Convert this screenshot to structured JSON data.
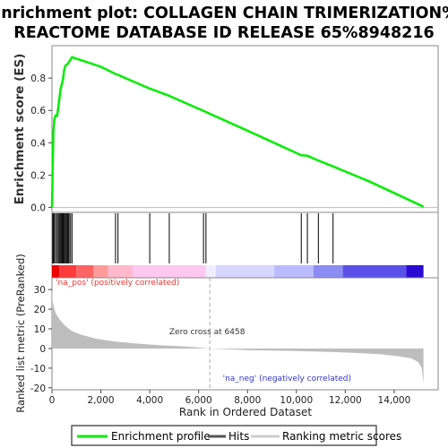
{
  "chart_data": {
    "type": "line",
    "title_lines": [
      "Enrichment plot: COLLAGEN CHAIN TRIMERIZATION%",
      "REACTOME DATABASE ID RELEASE 65%8948216"
    ],
    "xlabel": "Rank in Ordered Dataset",
    "xlim": [
      0,
      15800
    ],
    "x_ticks": [
      0,
      2000,
      4000,
      6000,
      8000,
      10000,
      12000,
      14000
    ],
    "x_tick_labels": [
      "0",
      "2,000",
      "4,000",
      "6,000",
      "8,000",
      "10,000",
      "12,000",
      "14,000"
    ],
    "es_panel": {
      "ylabel": "Enrichment score (ES)",
      "ylim": [
        -0.03,
        1.0
      ],
      "y_ticks": [
        0.0,
        0.2,
        0.4,
        0.6,
        0.8
      ],
      "y_tick_labels": [
        "0.0",
        "0.2",
        "0.4",
        "0.6",
        "0.8"
      ],
      "series": [
        {
          "name": "Enrichment profile",
          "color": "#00ee00",
          "points": [
            [
              0,
              0.0
            ],
            [
              30,
              0.25
            ],
            [
              60,
              0.47
            ],
            [
              100,
              0.55
            ],
            [
              150,
              0.57
            ],
            [
              210,
              0.565
            ],
            [
              260,
              0.62
            ],
            [
              310,
              0.68
            ],
            [
              350,
              0.73
            ],
            [
              400,
              0.76
            ],
            [
              450,
              0.79
            ],
            [
              490,
              0.84
            ],
            [
              530,
              0.87
            ],
            [
              570,
              0.88
            ],
            [
              620,
              0.885
            ],
            [
              660,
              0.89
            ],
            [
              700,
              0.9
            ],
            [
              760,
              0.915
            ],
            [
              820,
              0.93
            ],
            [
              900,
              0.925
            ],
            [
              2000,
              0.87
            ],
            [
              2600,
              0.825
            ],
            [
              2700,
              0.82
            ],
            [
              3000,
              0.8
            ],
            [
              4000,
              0.735
            ],
            [
              4800,
              0.69
            ],
            [
              6200,
              0.597
            ],
            [
              6300,
              0.59
            ],
            [
              8000,
              0.475
            ],
            [
              10200,
              0.323
            ],
            [
              10450,
              0.32
            ],
            [
              10900,
              0.29
            ],
            [
              11500,
              0.254
            ],
            [
              13000,
              0.16
            ],
            [
              15200,
              0.005
            ]
          ]
        }
      ]
    },
    "hits": {
      "name": "Hits",
      "color": "#000000",
      "positions": [
        30,
        60,
        100,
        150,
        210,
        260,
        300,
        340,
        380,
        420,
        460,
        500,
        540,
        580,
        620,
        660,
        700,
        760,
        820,
        2600,
        2700,
        4000,
        4800,
        6200,
        6300,
        10200,
        10450,
        10900,
        11500
      ]
    },
    "ranking_bar": {
      "segments": [
        {
          "from": 0,
          "to": 300,
          "color": "#ee0000"
        },
        {
          "from": 300,
          "to": 1000,
          "color": "#ff3a3a"
        },
        {
          "from": 1000,
          "to": 1700,
          "color": "#ff6464"
        },
        {
          "from": 1700,
          "to": 2300,
          "color": "#ff9a9a"
        },
        {
          "from": 2300,
          "to": 3300,
          "color": "#ffb9cf"
        },
        {
          "from": 3300,
          "to": 6300,
          "color": "#ffc8f0"
        },
        {
          "from": 6300,
          "to": 6700,
          "color": "#eeeeff"
        },
        {
          "from": 6700,
          "to": 9100,
          "color": "#d6d6ff"
        },
        {
          "from": 9100,
          "to": 10700,
          "color": "#babaff"
        },
        {
          "from": 10700,
          "to": 11900,
          "color": "#8c8cf2"
        },
        {
          "from": 11900,
          "to": 14500,
          "color": "#5a50e8"
        },
        {
          "from": 14500,
          "to": 15200,
          "color": "#2a0ad2"
        }
      ]
    },
    "rank_panel": {
      "ylabel": "Ranked list metric (PreRanked)",
      "ylim": [
        -21,
        36
      ],
      "y_ticks": [
        -20,
        -10,
        0,
        10,
        20,
        30
      ],
      "y_tick_labels": [
        "-20",
        "-10",
        "0",
        "10",
        "20",
        "30"
      ],
      "metric_color": "#bdbdbd",
      "metric_points": [
        [
          0,
          30
        ],
        [
          20,
          25
        ],
        [
          60,
          22
        ],
        [
          150,
          18
        ],
        [
          300,
          15
        ],
        [
          500,
          12
        ],
        [
          800,
          9
        ],
        [
          1200,
          7
        ],
        [
          1800,
          5
        ],
        [
          2600,
          3.5
        ],
        [
          3500,
          2.5
        ],
        [
          4500,
          1.6
        ],
        [
          5500,
          1.0
        ],
        [
          6458,
          0
        ],
        [
          8000,
          -0.8
        ],
        [
          10000,
          -1.3
        ],
        [
          11500,
          -1.8
        ],
        [
          12500,
          -2.3
        ],
        [
          13500,
          -3.0
        ],
        [
          14200,
          -4.0
        ],
        [
          14700,
          -5.0
        ],
        [
          15000,
          -7.0
        ],
        [
          15130,
          -10.0
        ],
        [
          15200,
          -18
        ]
      ],
      "zero_cross_x": 6458,
      "zero_cross_label": "Zero cross at 6458",
      "pos_label": "'na_pos' (positively correlated)",
      "pos_color": "#ee3333",
      "neg_label": "'na_neg' (negatively correlated)",
      "neg_color": "#3333cc"
    },
    "legend": {
      "placement": "bottom",
      "entries": [
        {
          "label": "Enrichment profile",
          "color": "#00ee00"
        },
        {
          "label": "Hits",
          "color": "#555555"
        },
        {
          "label": "Ranking metric scores",
          "color": "#cccccc"
        }
      ]
    }
  }
}
